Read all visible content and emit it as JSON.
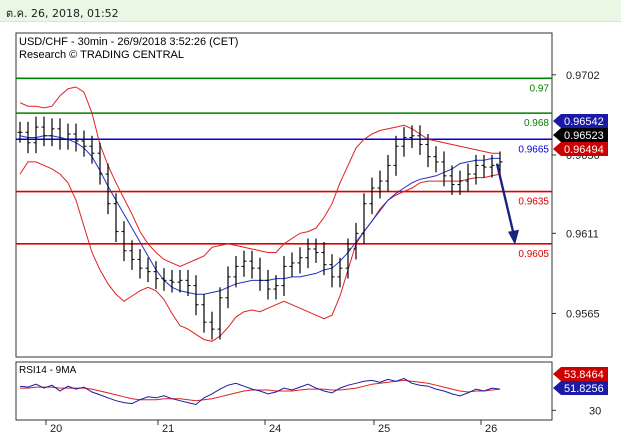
{
  "timestamp": "ต.ค. 26, 2018, 01:52",
  "chart_data": [
    {
      "type": "line",
      "title": "USD/CHF - 30min - 26/9/2018 3:52:26 (CET)",
      "subtitle": "Research © TRADING CENTRAL",
      "x_ticks": [
        "20",
        "21",
        "24",
        "25",
        "26"
      ],
      "y_ticks": [
        0.9702,
        0.9656,
        0.9611,
        0.9565
      ],
      "ylim": [
        0.954,
        0.9726
      ],
      "levels": [
        {
          "label": "0.97",
          "value": 0.97,
          "color": "#008000"
        },
        {
          "label": "0.968",
          "value": 0.968,
          "color": "#008000"
        },
        {
          "label": "0.9665",
          "value": 0.9665,
          "color": "#0000dd"
        },
        {
          "label": "0.9635",
          "value": 0.9635,
          "color": "#dd0000"
        },
        {
          "label": "0.9605",
          "value": 0.9605,
          "color": "#dd0000"
        }
      ],
      "badges": [
        {
          "label": "0.96542",
          "value": 0.96542,
          "color": "#1a1aa6"
        },
        {
          "label": "0.96523",
          "value": 0.96523,
          "color": "#000000"
        },
        {
          "label": "0.96494",
          "value": 0.96494,
          "color": "#cc0000"
        }
      ],
      "price": [
        0.9669,
        0.9663,
        0.9672,
        0.9667,
        0.9671,
        0.9665,
        0.9668,
        0.9664,
        0.9661,
        0.9657,
        0.9645,
        0.9628,
        0.9612,
        0.9601,
        0.9596,
        0.9591,
        0.9589,
        0.9585,
        0.9584,
        0.9583,
        0.9584,
        0.9581,
        0.957,
        0.956,
        0.9556,
        0.9574,
        0.9586,
        0.9592,
        0.9595,
        0.9591,
        0.9584,
        0.9579,
        0.9581,
        0.9592,
        0.9594,
        0.9597,
        0.9602,
        0.96,
        0.9593,
        0.9586,
        0.9591,
        0.9602,
        0.9611,
        0.9628,
        0.9637,
        0.9641,
        0.965,
        0.9661,
        0.9666,
        0.9667,
        0.9662,
        0.9655,
        0.9652,
        0.9644,
        0.9639,
        0.9641,
        0.9645,
        0.965,
        0.9649,
        0.965,
        0.9652
      ],
      "sma": [
        0.9667,
        0.9666,
        0.9666,
        0.9667,
        0.9667,
        0.9666,
        0.9665,
        0.9663,
        0.966,
        0.9655,
        0.9647,
        0.9638,
        0.963,
        0.9622,
        0.9614,
        0.9606,
        0.9598,
        0.959,
        0.9584,
        0.958,
        0.9578,
        0.9577,
        0.9576,
        0.9576,
        0.9577,
        0.9578,
        0.958,
        0.9582,
        0.9583,
        0.9584,
        0.9584,
        0.9584,
        0.9585,
        0.9585,
        0.9586,
        0.9586,
        0.9587,
        0.9588,
        0.959,
        0.9591,
        0.9595,
        0.96,
        0.9606,
        0.9612,
        0.9618,
        0.9624,
        0.963,
        0.9634,
        0.9637,
        0.964,
        0.9642,
        0.9643,
        0.9644,
        0.9646,
        0.9648,
        0.9651,
        0.9652,
        0.9653,
        0.9653,
        0.9654,
        0.9654
      ],
      "bb_upper": [
        0.9686,
        0.9684,
        0.9684,
        0.9683,
        0.9684,
        0.969,
        0.9694,
        0.9695,
        0.9692,
        0.968,
        0.9662,
        0.965,
        0.964,
        0.9631,
        0.9622,
        0.9612,
        0.9605,
        0.96,
        0.9596,
        0.9594,
        0.9592,
        0.9594,
        0.9596,
        0.9598,
        0.9603,
        0.9604,
        0.9605,
        0.9604,
        0.9603,
        0.9602,
        0.9601,
        0.96,
        0.96,
        0.9605,
        0.9608,
        0.9611,
        0.9612,
        0.9614,
        0.962,
        0.9628,
        0.964,
        0.965,
        0.966,
        0.9665,
        0.9668,
        0.967,
        0.9671,
        0.9672,
        0.9673,
        0.9671,
        0.9668,
        0.9665,
        0.9664,
        0.9663,
        0.9662,
        0.9661,
        0.966,
        0.9659,
        0.9658,
        0.9657,
        0.9657
      ],
      "bb_lower": [
        0.9645,
        0.9652,
        0.9652,
        0.965,
        0.9648,
        0.9645,
        0.964,
        0.963,
        0.9615,
        0.96,
        0.959,
        0.9582,
        0.9576,
        0.9572,
        0.9575,
        0.9578,
        0.958,
        0.9578,
        0.9573,
        0.9565,
        0.9558,
        0.9556,
        0.9553,
        0.955,
        0.9549,
        0.9552,
        0.9557,
        0.9563,
        0.9566,
        0.9567,
        0.9566,
        0.9568,
        0.957,
        0.9572,
        0.957,
        0.9568,
        0.9566,
        0.9564,
        0.9562,
        0.9564,
        0.9575,
        0.959,
        0.9605,
        0.9612,
        0.9618,
        0.9625,
        0.963,
        0.9633,
        0.9635,
        0.9637,
        0.964,
        0.9641,
        0.9641,
        0.9641,
        0.9641,
        0.9641,
        0.9642,
        0.9643,
        0.9643,
        0.9644,
        0.9645
      ],
      "forecast_arrow": {
        "from": 0.9651,
        "to": 0.9605
      }
    },
    {
      "type": "line",
      "title": "RSI14 - 9MA",
      "y_ticks": [
        30
      ],
      "ylim": [
        20,
        80
      ],
      "badges": [
        {
          "label": "53.8464",
          "value": 53.8464,
          "color": "#cc0000"
        },
        {
          "label": "51.8256",
          "value": 51.8256,
          "color": "#1a1aa6"
        }
      ],
      "rsi": [
        55,
        54,
        57,
        53,
        56,
        50,
        55,
        52,
        54,
        49,
        46,
        43,
        40,
        38,
        37,
        41,
        44,
        43,
        45,
        42,
        40,
        38,
        36,
        43,
        47,
        52,
        56,
        58,
        55,
        52,
        50,
        47,
        49,
        53,
        51,
        54,
        57,
        53,
        50,
        48,
        53,
        56,
        58,
        60,
        61,
        59,
        62,
        60,
        63,
        58,
        56,
        55,
        52,
        50,
        47,
        45,
        48,
        52,
        50,
        53,
        52
      ],
      "rsi_ma": [
        53,
        53,
        54,
        54,
        54,
        53,
        53,
        53,
        53,
        52,
        50,
        48,
        46,
        44,
        42,
        41,
        41,
        41,
        42,
        42,
        42,
        41,
        40,
        41,
        42,
        44,
        46,
        48,
        50,
        51,
        51,
        51,
        50,
        50,
        50,
        51,
        52,
        52,
        52,
        51,
        51,
        52,
        53,
        55,
        57,
        58,
        59,
        60,
        61,
        60,
        59,
        58,
        56,
        54,
        52,
        50,
        49,
        50,
        50,
        51,
        52
      ]
    }
  ]
}
